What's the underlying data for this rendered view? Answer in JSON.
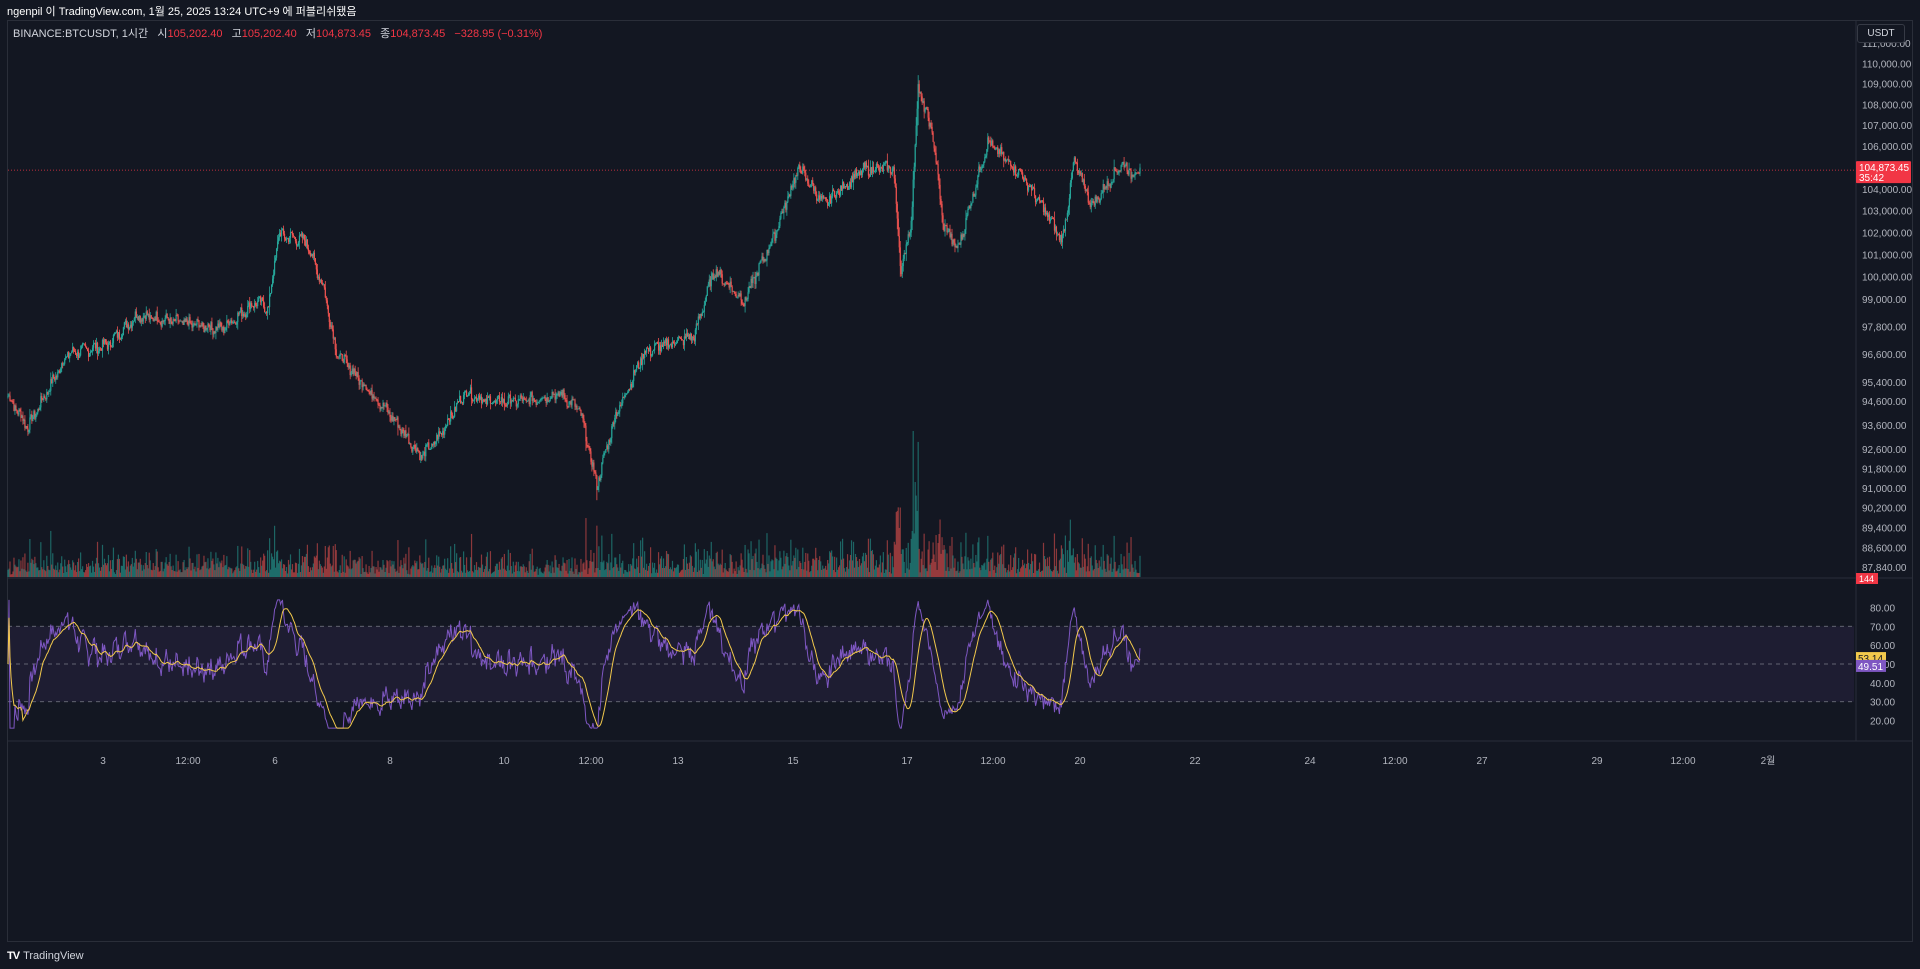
{
  "header": {
    "attribution": "ngenpil 이 TradingView.com, 1월 25, 2025 13:24 UTC+9 에 퍼블리쉬됐음"
  },
  "legend": {
    "symbol": "BINANCE:BTCUSDT, 1시간",
    "open_label": "시",
    "open": "105,202.40",
    "high_label": "고",
    "high": "105,202.40",
    "low_label": "저",
    "low": "104,873.45",
    "close_label": "종",
    "close": "104,873.45",
    "change": "−328.95 (−0.31%)"
  },
  "unit_button": {
    "label": "USDT"
  },
  "footer": {
    "logo_glyph": "TV",
    "brand": "TradingView"
  },
  "colors": {
    "background": "#131722",
    "up": "#26a69a",
    "down": "#ef5350",
    "rsi_line": "#7e57c2",
    "rsi_ma": "#f2c94c",
    "price_badge": "#f23645"
  },
  "chart_data": [
    {
      "type": "candlestick",
      "scale": "log",
      "ylim": [
        87840,
        111000
      ],
      "y_ticks": [
        "111,000.00",
        "110,000.00",
        "109,000.00",
        "108,000.00",
        "107,000.00",
        "106,000.00",
        "104,000.00",
        "103,000.00",
        "102,000.00",
        "101,000.00",
        "100,000.00",
        "99,000.00",
        "97,800.00",
        "96,600.00",
        "95,400.00",
        "94,600.00",
        "93,600.00",
        "92,600.00",
        "91,800.00",
        "91,000.00",
        "90,200.00",
        "89,400.00",
        "88,600.00",
        "87,840.00"
      ],
      "x_ticks": [
        "3",
        "12:00",
        "6",
        "8",
        "10",
        "12:00",
        "13",
        "15",
        "17",
        "12:00",
        "20",
        "22",
        "24",
        "12:00",
        "27",
        "29",
        "12:00",
        "2월"
      ],
      "last_price": "104,873.45",
      "countdown": "35:42",
      "volume_label": "144",
      "trend_waypoints": [
        {
          "t": 0,
          "price": 94800
        },
        {
          "t": 20,
          "price": 93500
        },
        {
          "t": 60,
          "price": 96600
        },
        {
          "t": 100,
          "price": 97000
        },
        {
          "t": 130,
          "price": 98300
        },
        {
          "t": 170,
          "price": 98000
        },
        {
          "t": 215,
          "price": 97700
        },
        {
          "t": 250,
          "price": 98900
        },
        {
          "t": 262,
          "price": 98600
        },
        {
          "t": 272,
          "price": 101900
        },
        {
          "t": 300,
          "price": 101600
        },
        {
          "t": 318,
          "price": 99400
        },
        {
          "t": 330,
          "price": 96700
        },
        {
          "t": 360,
          "price": 95200
        },
        {
          "t": 385,
          "price": 94000
        },
        {
          "t": 415,
          "price": 92300
        },
        {
          "t": 430,
          "price": 92900
        },
        {
          "t": 460,
          "price": 95000
        },
        {
          "t": 480,
          "price": 94600
        },
        {
          "t": 520,
          "price": 94600
        },
        {
          "t": 555,
          "price": 94900
        },
        {
          "t": 575,
          "price": 94200
        },
        {
          "t": 592,
          "price": 91100
        },
        {
          "t": 610,
          "price": 93900
        },
        {
          "t": 640,
          "price": 96700
        },
        {
          "t": 690,
          "price": 97400
        },
        {
          "t": 710,
          "price": 100300
        },
        {
          "t": 740,
          "price": 98900
        },
        {
          "t": 770,
          "price": 101800
        },
        {
          "t": 795,
          "price": 105000
        },
        {
          "t": 820,
          "price": 103300
        },
        {
          "t": 860,
          "price": 104900
        },
        {
          "t": 890,
          "price": 105000
        },
        {
          "t": 898,
          "price": 100200
        },
        {
          "t": 908,
          "price": 102500
        },
        {
          "t": 915,
          "price": 108800
        },
        {
          "t": 930,
          "price": 106500
        },
        {
          "t": 940,
          "price": 102400
        },
        {
          "t": 955,
          "price": 101200
        },
        {
          "t": 985,
          "price": 106200
        },
        {
          "t": 1020,
          "price": 104600
        },
        {
          "t": 1045,
          "price": 102800
        },
        {
          "t": 1060,
          "price": 101600
        },
        {
          "t": 1072,
          "price": 105300
        },
        {
          "t": 1090,
          "price": 103200
        },
        {
          "t": 1120,
          "price": 105200
        },
        {
          "t": 1130,
          "price": 104700
        },
        {
          "t": 1138,
          "price": 104900
        }
      ]
    },
    {
      "type": "line",
      "name": "RSI",
      "ylim": [
        15,
        85
      ],
      "y_ticks": [
        "80.00",
        "70.00",
        "60.00",
        "50.00",
        "40.00",
        "30.00",
        "20.00"
      ],
      "band": [
        30,
        70
      ],
      "mid": 50,
      "rsi_value": "49.51",
      "ma_value": "53.14"
    }
  ]
}
